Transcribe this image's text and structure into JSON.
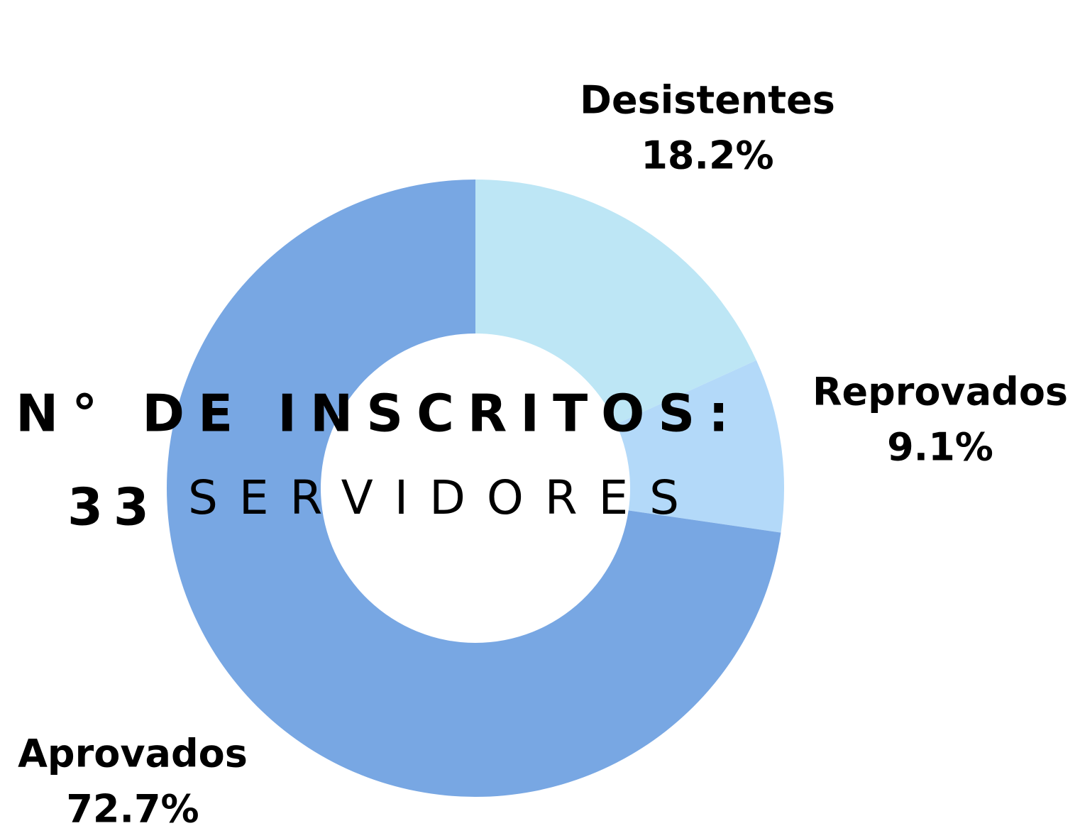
{
  "chart_data": {
    "type": "donut",
    "categories": [
      "Desistentes",
      "Reprovados",
      "Aprovados"
    ],
    "values": [
      18.2,
      9.1,
      72.7
    ],
    "value_labels": [
      "18.2%",
      "9.1%",
      "72.7%"
    ],
    "colors": [
      "#bde6f5",
      "#b3d9f9",
      "#78a7e3"
    ],
    "annotations": [
      "N° DE INSCRITOS:",
      "33",
      "SERVIDORES"
    ]
  }
}
